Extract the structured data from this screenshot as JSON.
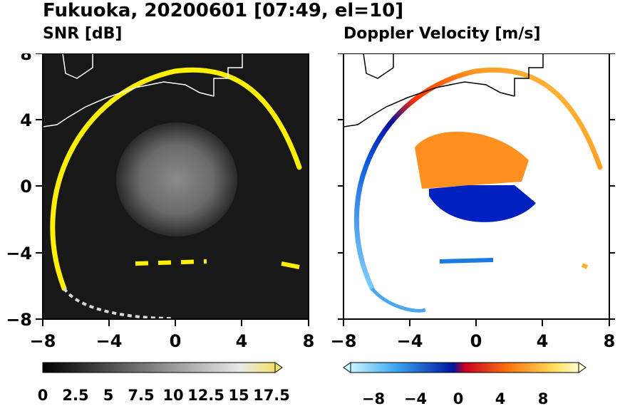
{
  "title": "Fukuoka, 20200601 [07:49, el=10]",
  "chart_data": [
    {
      "type": "heatmap",
      "title": "SNR [dB]",
      "xlim": [
        -8,
        8
      ],
      "ylim": [
        -8,
        8
      ],
      "x_ticks": [
        "−8",
        "−4",
        "0",
        "4",
        "8"
      ],
      "y_ticks": [
        "8",
        "4",
        "0",
        "−4",
        "−8"
      ],
      "colorscale": "grayscale_to_yellow",
      "colorbar_range": [
        0,
        17.5
      ],
      "colorbar_labels": [
        "0",
        "2.5",
        "5",
        "7.5",
        "10",
        "12.5",
        "15",
        "17.5"
      ],
      "colors": {
        "background": "#181818",
        "ring": "#ffef00",
        "center_echo": "#7a7a7a",
        "coast": "#ffffff"
      }
    },
    {
      "type": "heatmap",
      "title": "Doppler Velocity [m/s]",
      "xlim": [
        -8,
        8
      ],
      "ylim": [
        -8,
        8
      ],
      "x_ticks": [
        "−8",
        "−4",
        "0",
        "4",
        "8"
      ],
      "y_ticks": [
        "8",
        "4",
        "0",
        "−4",
        "−8"
      ],
      "colorscale": "blue_white_red_yellow",
      "colorbar_range": [
        -10,
        10
      ],
      "colorbar_labels": [
        "−8",
        "−4",
        "0",
        "4",
        "8"
      ],
      "colors": {
        "background": "#ffffff",
        "negative": "#0022cc",
        "positive": "#ff6a00",
        "coast": "#000000"
      }
    }
  ]
}
